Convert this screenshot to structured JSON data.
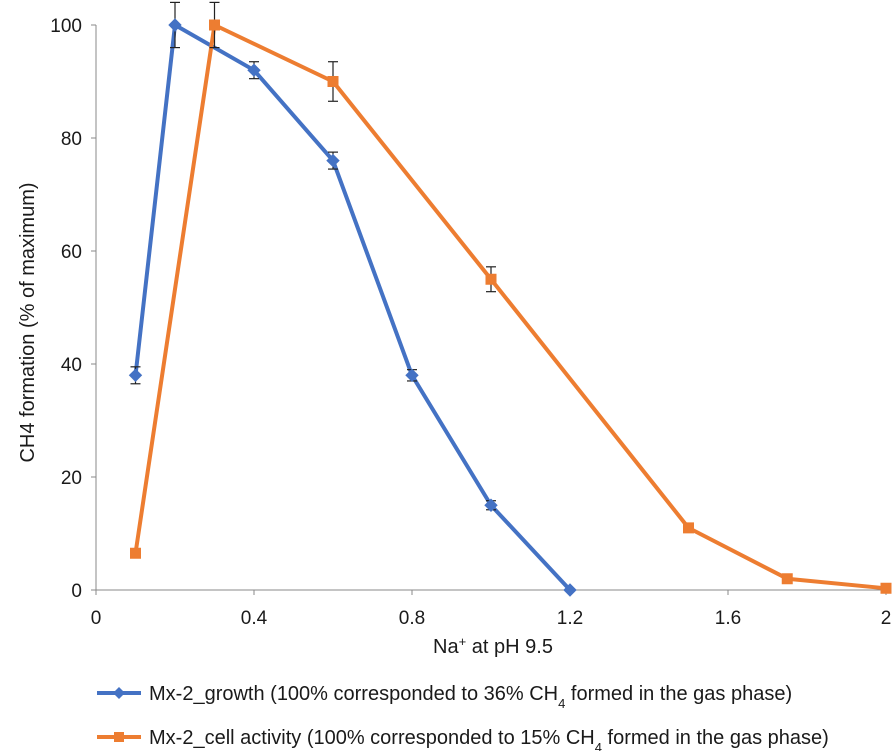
{
  "chart_data": {
    "type": "line",
    "title": "",
    "xlabel": {
      "main": "Na",
      "sup": "+",
      "rest": " at pH 9.5"
    },
    "ylabel": {
      "main": "CH",
      "sub": "4",
      "rest": " formation (% of maximum)"
    },
    "xlim": [
      0,
      2
    ],
    "ylim": [
      0,
      100
    ],
    "x_ticks": [
      "0",
      "0.4",
      "0.8",
      "1.2",
      "1.6",
      "2"
    ],
    "y_ticks": [
      "0",
      "20",
      "40",
      "60",
      "80",
      "100"
    ],
    "grid": false,
    "legend_position": "bottom",
    "series": [
      {
        "name": "Mx-2_growth (100% corresponded to 36% CH4 formed in the gas phase)",
        "legend": {
          "pre": "Mx-2_growth (100% corresponded  to 36% CH",
          "sub": "4",
          "post": " formed in the gas phase)"
        },
        "color": "#4472C4",
        "marker": "diamond",
        "x": [
          0.1,
          0.2,
          0.4,
          0.6,
          0.8,
          1.0,
          1.2
        ],
        "y": [
          38,
          100,
          92,
          76,
          38,
          15,
          0
        ],
        "error": [
          1.5,
          4,
          1.5,
          1.5,
          1,
          0.8,
          0
        ]
      },
      {
        "name": "Mx-2_cell activity (100% corresponded to 15% CH4 formed in the gas phase)",
        "legend": {
          "pre": "Mx-2_cell activity (100% corresponded  to 15% CH",
          "sub": "4",
          "post": " formed in the gas phase)"
        },
        "color": "#ED7D31",
        "marker": "square",
        "x": [
          0.1,
          0.3,
          0.6,
          1.0,
          1.5,
          1.75,
          2.0
        ],
        "y": [
          6.5,
          100,
          90,
          55,
          11,
          2,
          0.3
        ],
        "error": [
          0.5,
          4,
          3.5,
          2.2,
          0.5,
          0.4,
          0.3
        ]
      }
    ]
  }
}
